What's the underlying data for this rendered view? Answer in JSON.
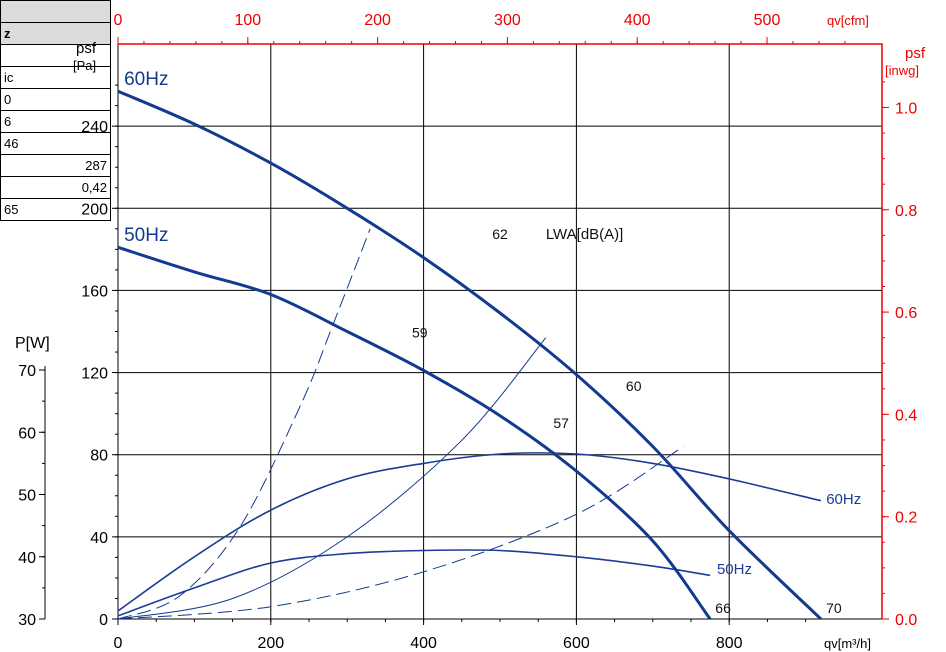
{
  "table": {
    "rows": [
      "",
      "z",
      "",
      "ic",
      "0",
      "6",
      "46",
      "287",
      "0,42",
      "65"
    ]
  },
  "chart_data": {
    "type": "line",
    "bottom_axis": {
      "label": "qv[m³/h]",
      "ticks": [
        "0",
        "200",
        "400",
        "600",
        "800"
      ],
      "range": [
        0,
        1000
      ]
    },
    "top_axis": {
      "label": "qv[cfm]",
      "ticks": [
        "0",
        "100",
        "200",
        "300",
        "400",
        "500"
      ],
      "range": [
        0,
        588
      ]
    },
    "left_axis": {
      "label_main": "psf",
      "label_unit": "[Pa]",
      "ticks": [
        "0",
        "40",
        "80",
        "120",
        "160",
        "200",
        "240"
      ],
      "range": [
        0,
        280
      ]
    },
    "right_axis": {
      "label_main": "psf",
      "label_unit": "[inwg]",
      "ticks": [
        "0.0",
        "0.2",
        "0.4",
        "0.6",
        "0.8",
        "1.0"
      ],
      "range": [
        0,
        1.124
      ]
    },
    "power_axis": {
      "label": "P[W]",
      "ticks": [
        "30",
        "40",
        "50",
        "60",
        "70"
      ],
      "range": [
        30,
        70
      ]
    },
    "grid": true,
    "colors": {
      "pressure": "#123a8f",
      "power": "#1d3c96",
      "secondary_axes": "#ee0000"
    },
    "pressure_curves": [
      {
        "name": "60Hz",
        "x": [
          0,
          100,
          200,
          300,
          400,
          500,
          600,
          700,
          800,
          920
        ],
        "y": [
          257,
          241,
          222,
          200,
          176,
          149,
          119,
          84,
          43,
          0
        ]
      },
      {
        "name": "50Hz",
        "x": [
          0,
          100,
          200,
          300,
          400,
          500,
          600,
          700,
          775
        ],
        "y": [
          181,
          169,
          158,
          140,
          121,
          99,
          72,
          38,
          0
        ]
      }
    ],
    "power_curves": [
      {
        "name": "60Hz",
        "x": [
          0,
          100,
          200,
          300,
          400,
          500,
          600,
          700,
          800,
          920
        ],
        "y_watts": [
          31.3,
          40.0,
          47.5,
          52.5,
          55.0,
          56.5,
          56.5,
          55.0,
          52.5,
          49.0
        ]
      },
      {
        "name": "50Hz",
        "x": [
          0,
          100,
          200,
          300,
          400,
          500,
          600,
          700,
          775
        ],
        "y_watts": [
          30.5,
          35.0,
          39.0,
          40.5,
          41.0,
          41.0,
          40.0,
          38.5,
          37.0
        ]
      }
    ],
    "system_curves": [
      {
        "x": [
          0,
          80,
          160,
          240,
          280,
          330
        ],
        "y": [
          0,
          11,
          45,
          105,
          142,
          190
        ]
      },
      {
        "x": [
          0,
          150,
          300,
          450,
          560
        ],
        "y": [
          0,
          10,
          40,
          87,
          137
        ]
      },
      {
        "x": [
          0,
          200,
          400,
          600,
          740
        ],
        "y": [
          0,
          6,
          23,
          51,
          84
        ]
      }
    ],
    "noise_labels": [
      {
        "text": "62",
        "x": 500,
        "y": 185
      },
      {
        "text": "LWA[dB(A)]",
        "x": 560,
        "y": 185
      },
      {
        "text": "59",
        "x": 395,
        "y": 137
      },
      {
        "text": "57",
        "x": 580,
        "y": 93
      },
      {
        "text": "60",
        "x": 675,
        "y": 111
      },
      {
        "text": "66",
        "x": 792,
        "y": 3
      },
      {
        "text": "70",
        "x": 937,
        "y": 3
      }
    ],
    "curve_labels": [
      {
        "text": "60Hz",
        "series": "pressure 60Hz",
        "x": 8,
        "y": 260
      },
      {
        "text": "50Hz",
        "series": "pressure 50Hz",
        "x": 8,
        "y": 184
      },
      {
        "text": "60Hz",
        "series": "power 60Hz",
        "x": 927,
        "y_watts": 48.5
      },
      {
        "text": "50Hz",
        "series": "power 50Hz",
        "x": 784,
        "y_watts": 37.2
      }
    ]
  }
}
